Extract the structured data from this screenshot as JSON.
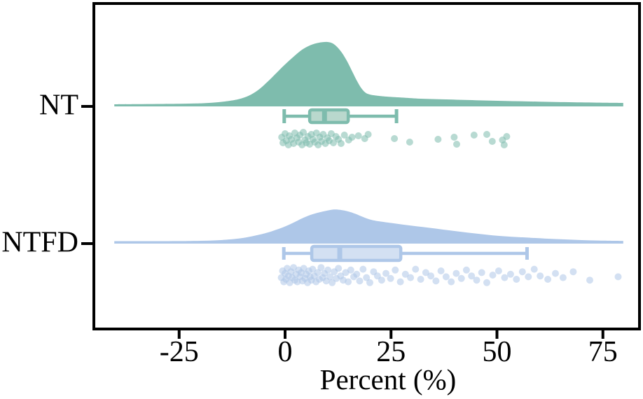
{
  "chart_data": {
    "type": "raincloud (half-violin + boxplot + jittered strip, horizontal)",
    "title": "",
    "xlabel": "Percent (%)",
    "ylabel": "",
    "x_ticks": [
      {
        "value": -25,
        "label": "-25"
      },
      {
        "value": 0,
        "label": "0"
      },
      {
        "value": 25,
        "label": "25"
      },
      {
        "value": 50,
        "label": "50"
      },
      {
        "value": 75,
        "label": "75"
      }
    ],
    "x_range_shown": [
      -45,
      83
    ],
    "grid": "off",
    "legend": "none",
    "frame_color": "#000000",
    "categories": [
      "NT",
      "NTFD"
    ],
    "groups": [
      {
        "name": "NT",
        "color": "#7EBCAD",
        "box_fill": "#B9D8CD",
        "point_opacity": 0.55,
        "box": {
          "whisker_low": -0.2,
          "q1": 5.8,
          "median": 9.3,
          "q3": 14.9,
          "whisker_high": 26.3
        },
        "density_peak_at": 10,
        "density_profile": [
          [
            -40.3,
            3
          ],
          [
            -35,
            3.2
          ],
          [
            -30,
            3.5
          ],
          [
            -25,
            3.8
          ],
          [
            -21,
            4.2
          ],
          [
            -18,
            5
          ],
          [
            -15,
            6.5
          ],
          [
            -12,
            9
          ],
          [
            -10,
            12
          ],
          [
            -8,
            17
          ],
          [
            -6,
            25
          ],
          [
            -4,
            36
          ],
          [
            -2,
            48
          ],
          [
            0,
            60
          ],
          [
            2,
            71
          ],
          [
            4,
            81
          ],
          [
            6,
            87.5
          ],
          [
            8,
            91
          ],
          [
            10,
            92
          ],
          [
            11.5,
            89
          ],
          [
            13,
            80
          ],
          [
            14.5,
            66
          ],
          [
            16,
            48
          ],
          [
            17,
            36
          ],
          [
            18,
            26
          ],
          [
            19,
            19.5
          ],
          [
            20,
            17
          ],
          [
            21.5,
            15.5
          ],
          [
            24,
            14
          ],
          [
            28,
            12.5
          ],
          [
            32,
            11
          ],
          [
            38,
            10
          ],
          [
            45,
            8.8
          ],
          [
            52,
            7.8
          ],
          [
            60,
            6.8
          ],
          [
            68,
            5.9
          ],
          [
            75,
            5.3
          ],
          [
            79.8,
            5
          ]
        ],
        "points": [
          [
            -0.8,
            -0.2
          ],
          [
            -0.5,
            0.6
          ],
          [
            0,
            -0.7
          ],
          [
            0.3,
            0.3
          ],
          [
            0.8,
            0.9
          ],
          [
            1,
            -0.4
          ],
          [
            1.5,
            0.1
          ],
          [
            2,
            0.7
          ],
          [
            2.3,
            -0.8
          ],
          [
            2.8,
            -0.1
          ],
          [
            3.2,
            0.5
          ],
          [
            3.5,
            -0.5
          ],
          [
            4,
            0.9
          ],
          [
            4.3,
            -0.9
          ],
          [
            4.7,
            0.2
          ],
          [
            5,
            0.6
          ],
          [
            5.4,
            -0.3
          ],
          [
            5.8,
            0.8
          ],
          [
            6.2,
            -0.6
          ],
          [
            6.6,
            0.1
          ],
          [
            7,
            0.5
          ],
          [
            7.4,
            -0.8
          ],
          [
            7.8,
            0.9
          ],
          [
            8.2,
            -0.2
          ],
          [
            8.6,
            0.4
          ],
          [
            9,
            -0.6
          ],
          [
            9.5,
            0.7
          ],
          [
            10,
            -0.1
          ],
          [
            10.4,
            0.3
          ],
          [
            10.9,
            -0.7
          ],
          [
            11.4,
            0.6
          ],
          [
            12,
            -0.3
          ],
          [
            12.6,
            0.1
          ],
          [
            13.2,
            0.7
          ],
          [
            14,
            -0.5
          ],
          [
            15,
            0.2
          ],
          [
            15.8,
            -0.2
          ],
          [
            17.3,
            -0.4
          ],
          [
            18.8,
            0
          ],
          [
            19.6,
            -0.6
          ],
          [
            25.8,
            0
          ],
          [
            29.4,
            0.5
          ],
          [
            36.1,
            0.1
          ],
          [
            39.9,
            -0.2
          ],
          [
            40.5,
            0.8
          ],
          [
            44.6,
            -0.5
          ],
          [
            47.6,
            -0.6
          ],
          [
            48.9,
            0.4
          ],
          [
            51.3,
            0.2
          ],
          [
            51.7,
            0.9
          ],
          [
            52.3,
            -0.3
          ]
        ]
      },
      {
        "name": "NTFD",
        "color": "#AEC7E8",
        "box_fill": "#D3E0F2",
        "point_opacity": 0.55,
        "box": {
          "whisker_low": -0.3,
          "q1": 6.3,
          "median": 12.9,
          "q3": 27.3,
          "whisker_high": 57.1
        },
        "density_peak_at": 11.5,
        "density_profile": [
          [
            -40.3,
            3.5
          ],
          [
            -32,
            3.5
          ],
          [
            -25,
            3.6
          ],
          [
            -20,
            4
          ],
          [
            -16,
            4.8
          ],
          [
            -13,
            6
          ],
          [
            -10,
            8
          ],
          [
            -7,
            11.5
          ],
          [
            -4,
            16
          ],
          [
            -2,
            20
          ],
          [
            0,
            24.5
          ],
          [
            2,
            30
          ],
          [
            4,
            36
          ],
          [
            6,
            41
          ],
          [
            8,
            44.5
          ],
          [
            10,
            47.2
          ],
          [
            11.5,
            48.7
          ],
          [
            13,
            48.2
          ],
          [
            15,
            45.8
          ],
          [
            16.5,
            42.8
          ],
          [
            18,
            39
          ],
          [
            20,
            34.5
          ],
          [
            22,
            32
          ],
          [
            25,
            29.5
          ],
          [
            28,
            27
          ],
          [
            31,
            24.8
          ],
          [
            34,
            22.6
          ],
          [
            37,
            20.3
          ],
          [
            40,
            18
          ],
          [
            43,
            15.8
          ],
          [
            46,
            13.8
          ],
          [
            49,
            11.8
          ],
          [
            52,
            10.4
          ],
          [
            55,
            9.2
          ],
          [
            58,
            8.3
          ],
          [
            62,
            7
          ],
          [
            66,
            6
          ],
          [
            70,
            5
          ],
          [
            74,
            4.4
          ],
          [
            78,
            4
          ],
          [
            79.8,
            3.9
          ]
        ],
        "points": [
          [
            -0.9,
            0.3
          ],
          [
            -0.6,
            -0.5
          ],
          [
            -0.3,
            0.8
          ],
          [
            0,
            -0.2
          ],
          [
            0.2,
            0.5
          ],
          [
            0.5,
            -0.8
          ],
          [
            0.8,
            0.1
          ],
          [
            1.1,
            0.9
          ],
          [
            1.4,
            -0.4
          ],
          [
            1.7,
            0.3
          ],
          [
            2,
            -0.9
          ],
          [
            2.3,
            0.6
          ],
          [
            2.6,
            -0.1
          ],
          [
            2.9,
            0.8
          ],
          [
            3.2,
            -0.6
          ],
          [
            3.5,
            0.2
          ],
          [
            3.8,
            -0.3
          ],
          [
            4.1,
            0.7
          ],
          [
            4.4,
            -0.8
          ],
          [
            4.7,
            0.4
          ],
          [
            5,
            -0.1
          ],
          [
            5.3,
            0.9
          ],
          [
            5.6,
            -0.5
          ],
          [
            5.9,
            0.2
          ],
          [
            6.2,
            0.6
          ],
          [
            6.5,
            -0.7
          ],
          [
            6.9,
            0.1
          ],
          [
            7.3,
            0.8
          ],
          [
            7.7,
            -0.3
          ],
          [
            8.1,
            0.5
          ],
          [
            8.5,
            -0.9
          ],
          [
            8.9,
            0.3
          ],
          [
            9.3,
            -0.2
          ],
          [
            9.7,
            0.7
          ],
          [
            10.1,
            -0.6
          ],
          [
            10.6,
            0.2
          ],
          [
            11.1,
            0.9
          ],
          [
            11.6,
            -0.4
          ],
          [
            12.1,
            0.4
          ],
          [
            12.6,
            -0.8
          ],
          [
            13.1,
            0.1
          ],
          [
            13.7,
            0.6
          ],
          [
            14.3,
            -0.3
          ],
          [
            14.9,
            0.8
          ],
          [
            15.5,
            -0.6
          ],
          [
            16.2,
            0.2
          ],
          [
            16.9,
            -0.1
          ],
          [
            17.6,
            0.7
          ],
          [
            18.4,
            -0.7
          ],
          [
            19.2,
            0.3
          ],
          [
            20,
            0.9
          ],
          [
            20.9,
            -0.4
          ],
          [
            21.8,
            0.1
          ],
          [
            22.8,
            0.6
          ],
          [
            23.8,
            -0.2
          ],
          [
            24.9,
            0.4
          ],
          [
            26,
            -0.6
          ],
          [
            27.2,
            0.8
          ],
          [
            28.4,
            -0.1
          ],
          [
            29.6,
            0.3
          ],
          [
            30.8,
            -0.7
          ],
          [
            32,
            0.5
          ],
          [
            33.2,
            -0.3
          ],
          [
            34.4,
            0.1
          ],
          [
            35.6,
            0.7
          ],
          [
            36.8,
            -0.5
          ],
          [
            38,
            0.2
          ],
          [
            39.2,
            0.8
          ],
          [
            40.4,
            -0.2
          ],
          [
            41.6,
            0.4
          ],
          [
            42.8,
            -0.6
          ],
          [
            44,
            0.1
          ],
          [
            45.2,
            0.6
          ],
          [
            46.4,
            -0.3
          ],
          [
            47.6,
            0.9
          ],
          [
            49,
            0
          ],
          [
            50.4,
            -0.5
          ],
          [
            51.8,
            0.3
          ],
          [
            53.2,
            -0.1
          ],
          [
            54.6,
            0.5
          ],
          [
            56,
            -0.4
          ],
          [
            57.4,
            0.2
          ],
          [
            58.8,
            -0.7
          ],
          [
            60.2,
            0.1
          ],
          [
            62,
            0.5
          ],
          [
            63.8,
            -0.2
          ],
          [
            65.6,
            0.3
          ],
          [
            68,
            -0.4
          ],
          [
            71.9,
            0.6
          ],
          [
            78.6,
            0.2
          ]
        ]
      }
    ]
  }
}
